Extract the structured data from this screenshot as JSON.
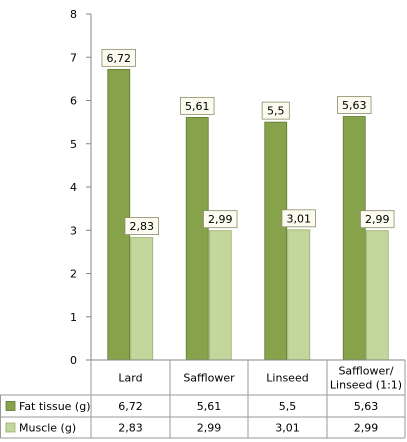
{
  "chart_data": {
    "type": "bar",
    "categories": [
      "Lard",
      "Safflower",
      "Linseed",
      "Safflower/ Linseed (1:1)"
    ],
    "category_lines": [
      [
        "Lard"
      ],
      [
        "Safflower"
      ],
      [
        "Linseed"
      ],
      [
        "Safflower/",
        "Linseed (1:1)"
      ]
    ],
    "series": [
      {
        "name": "Fat tissue  (g)",
        "values": [
          6.72,
          5.61,
          5.5,
          5.63
        ],
        "labels": [
          "6,72",
          "5,61",
          "5,5",
          "5,63"
        ],
        "color": "#86a24b",
        "stroke": "#5e7a2d"
      },
      {
        "name": "Muscle (g)",
        "values": [
          2.83,
          2.99,
          3.01,
          2.99
        ],
        "labels": [
          "2,83",
          "2,99",
          "3,01",
          "2,99"
        ],
        "color": "#c3d69b",
        "stroke": "#98ad6c"
      }
    ],
    "ylim": [
      0,
      8
    ],
    "yticks": [
      0,
      1,
      2,
      3,
      4,
      5,
      6,
      7,
      8
    ],
    "grid": false,
    "legend": "data-table-below",
    "title": "",
    "xlabel": "",
    "ylabel": ""
  }
}
